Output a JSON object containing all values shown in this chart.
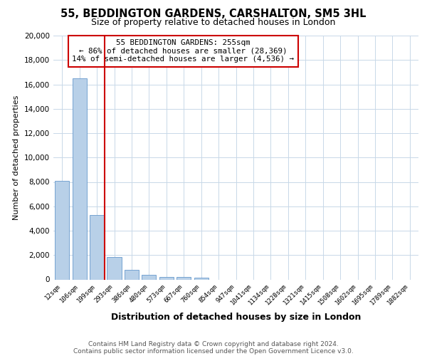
{
  "title_line1": "55, BEDDINGTON GARDENS, CARSHALTON, SM5 3HL",
  "title_line2": "Size of property relative to detached houses in London",
  "xlabel": "Distribution of detached houses by size in London",
  "ylabel": "Number of detached properties",
  "categories": [
    "12sqm",
    "106sqm",
    "199sqm",
    "293sqm",
    "386sqm",
    "480sqm",
    "573sqm",
    "667sqm",
    "760sqm",
    "854sqm",
    "947sqm",
    "1041sqm",
    "1134sqm",
    "1228sqm",
    "1321sqm",
    "1415sqm",
    "1508sqm",
    "1602sqm",
    "1695sqm",
    "1789sqm",
    "1882sqm"
  ],
  "values": [
    8100,
    16500,
    5300,
    1850,
    780,
    380,
    230,
    210,
    130,
    0,
    0,
    0,
    0,
    0,
    0,
    0,
    0,
    0,
    0,
    0,
    0
  ],
  "bar_color": "#b8d0e8",
  "bar_edgecolor": "#6699cc",
  "vline_color": "#cc0000",
  "vline_x": 2.43,
  "annotation_text_line1": "55 BEDDINGTON GARDENS: 255sqm",
  "annotation_text_line2": "← 86% of detached houses are smaller (28,369)",
  "annotation_text_line3": "14% of semi-detached houses are larger (4,536) →",
  "annotation_box_edgecolor": "#cc0000",
  "ylim": [
    0,
    20000
  ],
  "yticks": [
    0,
    2000,
    4000,
    6000,
    8000,
    10000,
    12000,
    14000,
    16000,
    18000,
    20000
  ],
  "footer_line1": "Contains HM Land Registry data © Crown copyright and database right 2024.",
  "footer_line2": "Contains public sector information licensed under the Open Government Licence v3.0.",
  "background_color": "#ffffff",
  "grid_color": "#c8d8e8",
  "title1_fontsize": 10.5,
  "title2_fontsize": 9,
  "ylabel_fontsize": 8,
  "xlabel_fontsize": 9,
  "ytick_fontsize": 7.5,
  "xtick_fontsize": 6.5,
  "footer_fontsize": 6.5,
  "annot_fontsize": 7.8
}
